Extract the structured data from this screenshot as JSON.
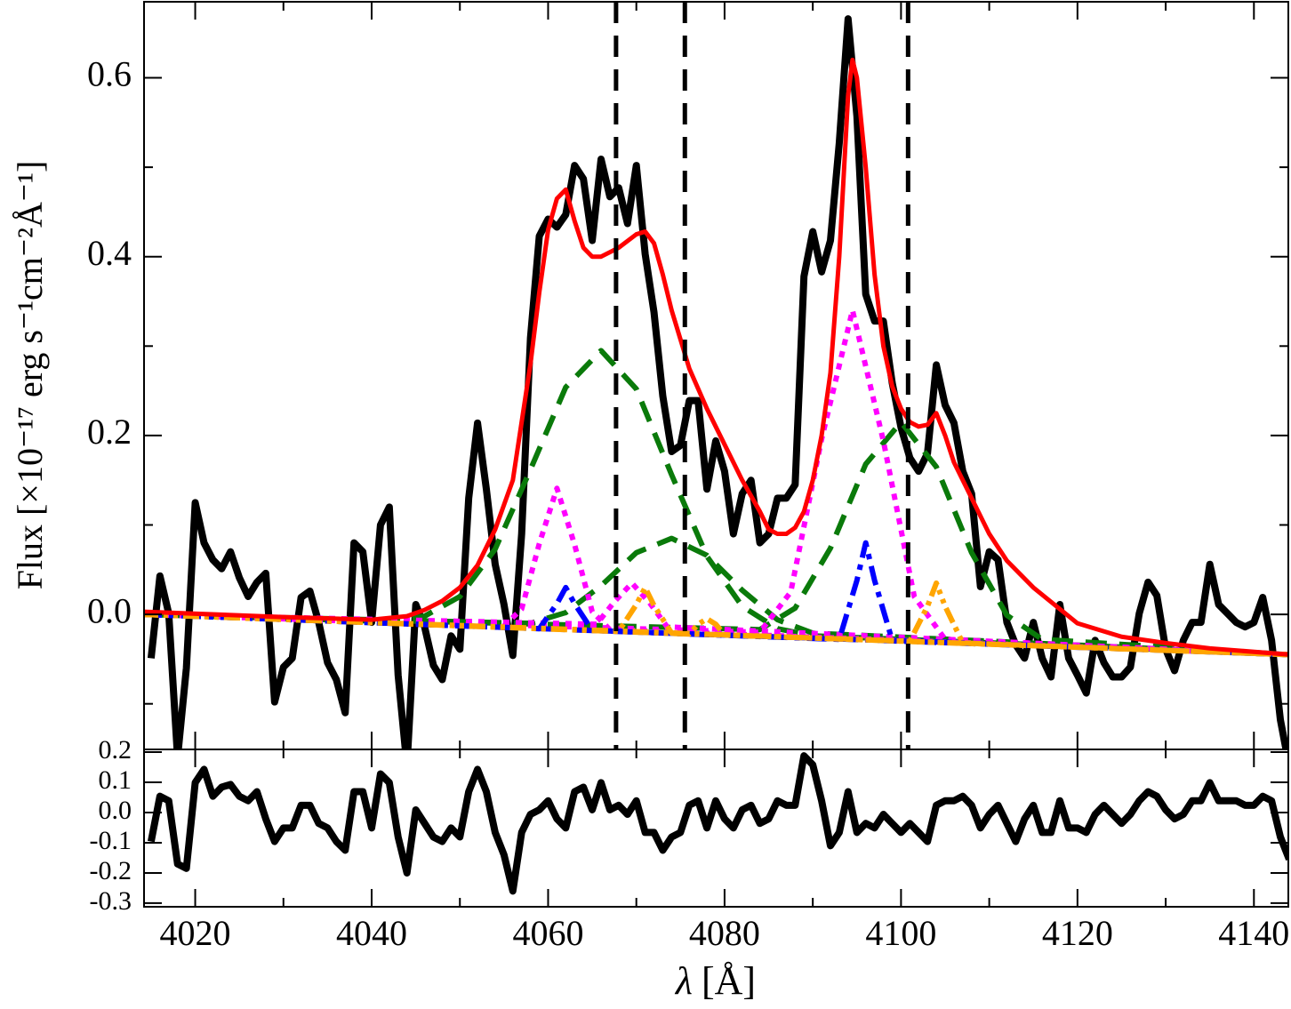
{
  "chart_data": [
    {
      "type": "line",
      "ylabel": "Flux [×10⁻¹⁷ erg s⁻¹cm⁻²Å⁻¹]",
      "xlim": [
        4014.2,
        4143.9
      ],
      "ylim": [
        -0.151,
        0.685
      ],
      "xticks": [
        4020,
        4040,
        4060,
        4080,
        4100,
        4120,
        4140
      ],
      "xminorticks": [
        4030,
        4050,
        4070,
        4090,
        4110,
        4130
      ],
      "yticks": [
        {
          "value": 0,
          "label": "0.0"
        },
        0.2,
        0.4,
        0.6
      ],
      "yminorticks": [
        -0.1,
        0.1,
        0.3,
        0.5
      ],
      "vlines": [
        4067.7,
        4075.5,
        4100.8
      ],
      "vline_color": "#000000",
      "series": [
        {
          "color": "#000000",
          "style": "solid",
          "x": [
            4015,
            4016,
            4017,
            4018,
            4019,
            4020,
            4021,
            4022,
            4023,
            4024,
            4025,
            4026,
            4027,
            4028,
            4029,
            4030,
            4031,
            4032,
            4033,
            4034,
            4035,
            4036,
            4037,
            4038,
            4039,
            4040,
            4041,
            4042,
            4043,
            4044,
            4045,
            4046,
            4047,
            4048,
            4049,
            4050,
            4051,
            4052,
            4053,
            4054,
            4055,
            4056,
            4057,
            4058,
            4059,
            4060,
            4061,
            4062,
            4063,
            4064,
            4065,
            4066,
            4067,
            4068,
            4069,
            4070,
            4071,
            4072,
            4073,
            4074,
            4075,
            4076,
            4077,
            4078,
            4079,
            4080,
            4081,
            4082,
            4083,
            4084,
            4085,
            4086,
            4087,
            4088,
            4089,
            4090,
            4091,
            4092,
            4093,
            4094,
            4095,
            4096,
            4097,
            4098,
            4099,
            4100,
            4101,
            4102,
            4103,
            4104,
            4105,
            4106,
            4107,
            4108,
            4109,
            4110,
            4111,
            4112,
            4113,
            4114,
            4115,
            4116,
            4117,
            4118,
            4119,
            4120,
            4121,
            4122,
            4123,
            4124,
            4125,
            4126,
            4127,
            4128,
            4129,
            4130,
            4131,
            4132,
            4133,
            4134,
            4135,
            4136,
            4137,
            4138,
            4139,
            4140,
            4141,
            4142,
            4143,
            4144
          ],
          "values": [
            -0.049,
            0.043,
            0.001,
            -0.16,
            -0.06,
            0.125,
            0.08,
            0.061,
            0.051,
            0.07,
            0.041,
            0.02,
            0.036,
            0.046,
            -0.098,
            -0.059,
            -0.049,
            0.019,
            0.026,
            -0.009,
            -0.054,
            -0.073,
            -0.11,
            0.08,
            0.07,
            -0.009,
            0.1,
            0.12,
            -0.068,
            -0.17,
            0.011,
            -0.014,
            -0.057,
            -0.073,
            -0.024,
            -0.039,
            0.13,
            0.214,
            0.14,
            0.056,
            0.011,
            -0.046,
            0.09,
            0.309,
            0.423,
            0.442,
            0.433,
            0.447,
            0.502,
            0.487,
            0.418,
            0.509,
            0.467,
            0.477,
            0.437,
            0.502,
            0.403,
            0.338,
            0.244,
            0.182,
            0.189,
            0.239,
            0.239,
            0.14,
            0.194,
            0.16,
            0.09,
            0.135,
            0.15,
            0.08,
            0.09,
            0.13,
            0.13,
            0.145,
            0.378,
            0.428,
            0.383,
            0.418,
            0.527,
            0.666,
            0.557,
            0.358,
            0.328,
            0.328,
            0.259,
            0.209,
            0.175,
            0.16,
            0.18,
            0.279,
            0.234,
            0.214,
            0.16,
            0.135,
            0.031,
            0.07,
            0.061,
            -0.009,
            -0.034,
            -0.049,
            -0.009,
            -0.049,
            -0.07,
            0.011,
            -0.049,
            -0.068,
            -0.088,
            -0.029,
            -0.054,
            -0.07,
            -0.07,
            -0.059,
            0.001,
            0.036,
            0.021,
            -0.039,
            -0.063,
            -0.029,
            -0.009,
            -0.009,
            0.056,
            0.011,
            0.001,
            -0.009,
            -0.014,
            -0.009,
            0.019,
            -0.029,
            -0.118,
            -0.17
          ]
        },
        {
          "color": "#0a7a0a",
          "style": "dashed",
          "x": [
            4014,
            4042,
            4046,
            4050,
            4054,
            4058,
            4062,
            4066,
            4070,
            4074,
            4078,
            4082,
            4086,
            4090,
            4144
          ],
          "values": [
            0,
            -0.008,
            -0.002,
            0.02,
            0.073,
            0.162,
            0.254,
            0.295,
            0.252,
            0.156,
            0.065,
            0.009,
            -0.016,
            -0.024,
            -0.045
          ]
        },
        {
          "color": "#0a7a0a",
          "style": "dashed",
          "x": [
            4014,
            4058,
            4062,
            4066,
            4070,
            4074,
            4078,
            4082,
            4086,
            4090,
            4144
          ],
          "values": [
            0,
            -0.01,
            0.002,
            0.032,
            0.069,
            0.085,
            0.066,
            0.027,
            -0.006,
            -0.021,
            -0.045
          ]
        },
        {
          "color": "#0a7a0a",
          "style": "dashed",
          "x": [
            4014,
            4084,
            4088,
            4092,
            4096,
            4100,
            4104,
            4108,
            4112,
            4116,
            4144
          ],
          "values": [
            0,
            -0.017,
            0.007,
            0.074,
            0.168,
            0.215,
            0.165,
            0.069,
            -0.001,
            -0.028,
            -0.045
          ]
        },
        {
          "color": "#ff00ff",
          "style": "dotted",
          "x": [
            4014,
            4055,
            4057,
            4059,
            4061,
            4063,
            4065,
            4067,
            4144
          ],
          "values": [
            0,
            -0.013,
            0.006,
            0.079,
            0.141,
            0.078,
            0.003,
            -0.017,
            -0.045
          ]
        },
        {
          "color": "#ff00ff",
          "style": "dotted",
          "x": [
            4014,
            4065.5,
            4067.5,
            4069.5,
            4071.5,
            4073.5,
            4144
          ],
          "values": [
            0,
            -0.011,
            0.014,
            0.035,
            0.013,
            -0.014,
            -0.045
          ]
        },
        {
          "color": "#ff00ff",
          "style": "dotted",
          "x": [
            4014,
            4084,
            4087.5,
            4091,
            4094.5,
            4098,
            4101.5,
            4105,
            4144
          ],
          "values": [
            0,
            -0.02,
            0.025,
            0.196,
            0.34,
            0.194,
            0.02,
            -0.028,
            -0.045
          ]
        },
        {
          "color": "#0000ff",
          "style": "dashdot",
          "x": [
            4014,
            4059,
            4061,
            4062,
            4063,
            4065,
            4144
          ],
          "values": [
            0,
            -0.016,
            0.012,
            0.03,
            0.012,
            -0.018,
            -0.045
          ]
        },
        {
          "color": "#0000ff",
          "style": "dashdot",
          "x": [
            4014,
            4093,
            4095,
            4096,
            4097,
            4099,
            4144
          ],
          "values": [
            0,
            -0.028,
            0.038,
            0.08,
            0.038,
            -0.029,
            -0.045
          ]
        },
        {
          "color": "#ffa500",
          "style": "dashdotdot",
          "x": [
            4014,
            4068,
            4070,
            4071,
            4072,
            4074,
            4144
          ],
          "values": [
            0,
            -0.019,
            0.011,
            0.03,
            0.01,
            -0.021,
            -0.045
          ]
        },
        {
          "color": "#ffa500",
          "style": "dashdotdot",
          "x": [
            4014,
            4076,
            4077,
            4078,
            4079,
            4080,
            4144
          ],
          "values": [
            0,
            -0.022,
            -0.011,
            -0.005,
            -0.011,
            -0.023,
            -0.045
          ]
        },
        {
          "color": "#ffa500",
          "style": "dashdotdot",
          "x": [
            4014,
            4101,
            4103,
            4104,
            4105,
            4107,
            4144
          ],
          "values": [
            0,
            -0.03,
            0.009,
            0.035,
            0.009,
            -0.032,
            -0.045
          ]
        },
        {
          "color": "#ff0000",
          "style": "solid",
          "x": [
            4014,
            4030,
            4040,
            4044,
            4046,
            4048,
            4050,
            4052,
            4054,
            4056,
            4058,
            4059,
            4060,
            4061,
            4062,
            4063,
            4064,
            4065,
            4066,
            4067,
            4068,
            4070,
            4071,
            4072,
            4073,
            4074,
            4076,
            4078,
            4080,
            4082,
            4084,
            4085,
            4086,
            4087,
            4088,
            4089,
            4090,
            4091,
            4092,
            4093,
            4094,
            4094.5,
            4095,
            4096,
            4097,
            4098,
            4099,
            4100,
            4101,
            4102,
            4103,
            4104,
            4105,
            4106,
            4107,
            4108,
            4110,
            4112,
            4115,
            4120,
            4125,
            4130,
            4135,
            4144
          ],
          "values": [
            0.003,
            -0.003,
            -0.006,
            -0.002,
            0.005,
            0.015,
            0.03,
            0.055,
            0.095,
            0.15,
            0.28,
            0.36,
            0.43,
            0.465,
            0.475,
            0.44,
            0.41,
            0.4,
            0.4,
            0.405,
            0.41,
            0.425,
            0.428,
            0.415,
            0.38,
            0.34,
            0.275,
            0.23,
            0.19,
            0.15,
            0.115,
            0.095,
            0.09,
            0.09,
            0.097,
            0.115,
            0.15,
            0.2,
            0.27,
            0.4,
            0.58,
            0.62,
            0.6,
            0.5,
            0.38,
            0.3,
            0.255,
            0.23,
            0.215,
            0.21,
            0.212,
            0.225,
            0.2,
            0.17,
            0.15,
            0.13,
            0.09,
            0.06,
            0.03,
            -0.01,
            -0.025,
            -0.032,
            -0.038,
            -0.045
          ]
        }
      ]
    },
    {
      "type": "line",
      "xlabel": {
        "symbol": "λ",
        "unit": "[Å]"
      },
      "xlim": [
        4014.2,
        4143.9
      ],
      "ylim": [
        -0.312,
        0.209
      ],
      "xticks": [
        4020,
        4040,
        4060,
        4080,
        4100,
        4120,
        4140
      ],
      "xminorticks": [
        4030,
        4050,
        4070,
        4090,
        4110,
        4130
      ],
      "yticks": [
        0.2,
        0.1,
        {
          "value": 0,
          "label": "0.0"
        },
        -0.1,
        -0.2,
        -0.3
      ],
      "series": [
        {
          "color": "#000000",
          "style": "solid",
          "x": [
            4015,
            4016,
            4017,
            4018,
            4019,
            4020,
            4021,
            4022,
            4023,
            4024,
            4025,
            4026,
            4027,
            4028,
            4029,
            4030,
            4031,
            4032,
            4033,
            4034,
            4035,
            4036,
            4037,
            4038,
            4039,
            4040,
            4041,
            4042,
            4043,
            4044,
            4045,
            4046,
            4047,
            4048,
            4049,
            4050,
            4051,
            4052,
            4053,
            4054,
            4055,
            4056,
            4057,
            4058,
            4059,
            4060,
            4061,
            4062,
            4063,
            4064,
            4065,
            4066,
            4067,
            4068,
            4069,
            4070,
            4071,
            4072,
            4073,
            4074,
            4075,
            4076,
            4077,
            4078,
            4079,
            4080,
            4081,
            4082,
            4083,
            4084,
            4085,
            4086,
            4087,
            4088,
            4089,
            4090,
            4091,
            4092,
            4093,
            4094,
            4095,
            4096,
            4097,
            4098,
            4099,
            4100,
            4101,
            4102,
            4103,
            4104,
            4105,
            4106,
            4107,
            4108,
            4109,
            4110,
            4111,
            4112,
            4113,
            4114,
            4115,
            4116,
            4117,
            4118,
            4119,
            4120,
            4121,
            4122,
            4123,
            4124,
            4125,
            4126,
            4127,
            4128,
            4129,
            4130,
            4131,
            4132,
            4133,
            4134,
            4135,
            4136,
            4137,
            4138,
            4139,
            4140,
            4141,
            4142,
            4143,
            4144
          ],
          "values": [
            -0.096,
            0.054,
            0.039,
            -0.17,
            -0.185,
            0.099,
            0.143,
            0.054,
            0.084,
            0.093,
            0.054,
            0.039,
            0.069,
            -0.021,
            -0.096,
            -0.051,
            -0.051,
            0.024,
            0.024,
            -0.036,
            -0.051,
            -0.096,
            -0.125,
            0.069,
            0.069,
            -0.051,
            0.128,
            0.099,
            -0.081,
            -0.2,
            0.009,
            -0.036,
            -0.081,
            -0.096,
            -0.051,
            -0.081,
            0.069,
            0.143,
            0.069,
            -0.066,
            -0.14,
            -0.26,
            -0.066,
            -0.006,
            0.009,
            0.039,
            -0.021,
            -0.051,
            0.069,
            0.084,
            0.009,
            0.099,
            0.009,
            0.024,
            -0.006,
            0.039,
            -0.066,
            -0.066,
            -0.125,
            -0.081,
            -0.066,
            0.024,
            0.039,
            -0.051,
            0.039,
            -0.021,
            -0.051,
            0.009,
            0.024,
            -0.036,
            -0.021,
            0.039,
            0.024,
            0.024,
            0.188,
            0.158,
            0.039,
            -0.11,
            -0.066,
            0.069,
            -0.066,
            -0.036,
            -0.051,
            -0.006,
            -0.036,
            -0.066,
            -0.036,
            -0.066,
            -0.096,
            0.024,
            0.039,
            0.039,
            0.054,
            0.024,
            -0.051,
            -0.006,
            0.024,
            -0.036,
            -0.096,
            -0.021,
            0.024,
            -0.066,
            -0.066,
            0.039,
            -0.051,
            -0.051,
            -0.066,
            -0.006,
            0.024,
            -0.006,
            -0.036,
            -0.006,
            0.039,
            0.069,
            0.054,
            0.009,
            -0.021,
            -0.006,
            0.039,
            0.039,
            0.099,
            0.039,
            0.039,
            0.039,
            0.024,
            0.024,
            0.054,
            0.039,
            -0.081,
            -0.155
          ]
        }
      ]
    }
  ]
}
